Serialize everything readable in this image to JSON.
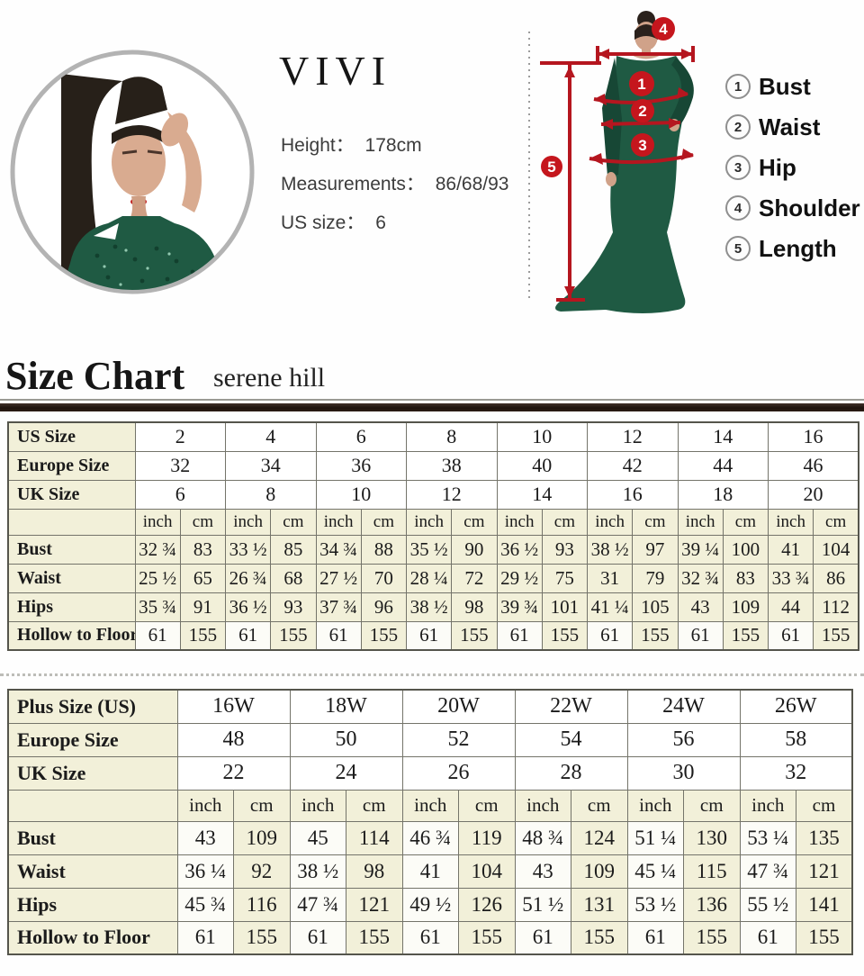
{
  "profile": {
    "brand": "VIVI",
    "height_label": "Height：",
    "height_value": "178cm",
    "measurements_label": "Measurements：",
    "measurements_value": "86/68/93",
    "us_size_label": "US size：",
    "us_size_value": "6"
  },
  "diagram": {
    "markers": [
      "1",
      "2",
      "3",
      "4",
      "5"
    ],
    "legend": [
      {
        "num": "1",
        "label": "Bust"
      },
      {
        "num": "2",
        "label": "Waist"
      },
      {
        "num": "3",
        "label": "Hip"
      },
      {
        "num": "4",
        "label": "Shoulder"
      },
      {
        "num": "5",
        "label": "Length"
      }
    ],
    "accent_red": "#c5161d",
    "dress_green": "#1f5a43"
  },
  "header": {
    "title": "Size Chart",
    "subtitle": "serene hill"
  },
  "chart_data": [
    {
      "type": "table",
      "name": "standard-sizes",
      "shade": "flat",
      "size_rows": [
        {
          "label": "US Size",
          "values": [
            "2",
            "4",
            "6",
            "8",
            "10",
            "12",
            "14",
            "16"
          ]
        },
        {
          "label": "Europe Size",
          "values": [
            "32",
            "34",
            "36",
            "38",
            "40",
            "42",
            "44",
            "46"
          ]
        },
        {
          "label": "UK Size",
          "values": [
            "6",
            "8",
            "10",
            "12",
            "14",
            "16",
            "18",
            "20"
          ]
        }
      ],
      "units": [
        "inch",
        "cm"
      ],
      "measure_rows": [
        {
          "label": "Bust",
          "cells": [
            [
              "32 ¾",
              "83"
            ],
            [
              "33 ½",
              "85"
            ],
            [
              "34 ¾",
              "88"
            ],
            [
              "35 ½",
              "90"
            ],
            [
              "36 ½",
              "93"
            ],
            [
              "38 ½",
              "97"
            ],
            [
              "39 ¼",
              "100"
            ],
            [
              "41",
              "104"
            ]
          ]
        },
        {
          "label": "Waist",
          "cells": [
            [
              "25 ½",
              "65"
            ],
            [
              "26 ¾",
              "68"
            ],
            [
              "27 ½",
              "70"
            ],
            [
              "28 ¼",
              "72"
            ],
            [
              "29 ½",
              "75"
            ],
            [
              "31",
              "79"
            ],
            [
              "32 ¾",
              "83"
            ],
            [
              "33 ¾",
              "86"
            ]
          ]
        },
        {
          "label": "Hips",
          "cells": [
            [
              "35 ¾",
              "91"
            ],
            [
              "36 ½",
              "93"
            ],
            [
              "37 ¾",
              "96"
            ],
            [
              "38 ½",
              "98"
            ],
            [
              "39 ¾",
              "101"
            ],
            [
              "41 ¼",
              "105"
            ],
            [
              "43",
              "109"
            ],
            [
              "44",
              "112"
            ]
          ]
        },
        {
          "label": "Hollow to Floor",
          "cells": [
            [
              "61",
              "155"
            ],
            [
              "61",
              "155"
            ],
            [
              "61",
              "155"
            ],
            [
              "61",
              "155"
            ],
            [
              "61",
              "155"
            ],
            [
              "61",
              "155"
            ],
            [
              "61",
              "155"
            ],
            [
              "61",
              "155"
            ]
          ]
        }
      ]
    },
    {
      "type": "table",
      "name": "plus-sizes",
      "shade": "alt",
      "size_rows": [
        {
          "label": "Plus Size (US)",
          "values": [
            "16W",
            "18W",
            "20W",
            "22W",
            "24W",
            "26W"
          ]
        },
        {
          "label": "Europe Size",
          "values": [
            "48",
            "50",
            "52",
            "54",
            "56",
            "58"
          ]
        },
        {
          "label": "UK Size",
          "values": [
            "22",
            "24",
            "26",
            "28",
            "30",
            "32"
          ]
        }
      ],
      "units": [
        "inch",
        "cm"
      ],
      "measure_rows": [
        {
          "label": "Bust",
          "cells": [
            [
              "43",
              "109"
            ],
            [
              "45",
              "114"
            ],
            [
              "46 ¾",
              "119"
            ],
            [
              "48 ¾",
              "124"
            ],
            [
              "51 ¼",
              "130"
            ],
            [
              "53 ¼",
              "135"
            ]
          ]
        },
        {
          "label": "Waist",
          "cells": [
            [
              "36 ¼",
              "92"
            ],
            [
              "38 ½",
              "98"
            ],
            [
              "41",
              "104"
            ],
            [
              "43",
              "109"
            ],
            [
              "45 ¼",
              "115"
            ],
            [
              "47 ¾",
              "121"
            ]
          ]
        },
        {
          "label": "Hips",
          "cells": [
            [
              "45 ¾",
              "116"
            ],
            [
              "47 ¾",
              "121"
            ],
            [
              "49 ½",
              "126"
            ],
            [
              "51 ½",
              "131"
            ],
            [
              "53 ½",
              "136"
            ],
            [
              "55 ½",
              "141"
            ]
          ]
        },
        {
          "label": "Hollow to Floor",
          "cells": [
            [
              "61",
              "155"
            ],
            [
              "61",
              "155"
            ],
            [
              "61",
              "155"
            ],
            [
              "61",
              "155"
            ],
            [
              "61",
              "155"
            ],
            [
              "61",
              "155"
            ]
          ]
        }
      ]
    }
  ]
}
